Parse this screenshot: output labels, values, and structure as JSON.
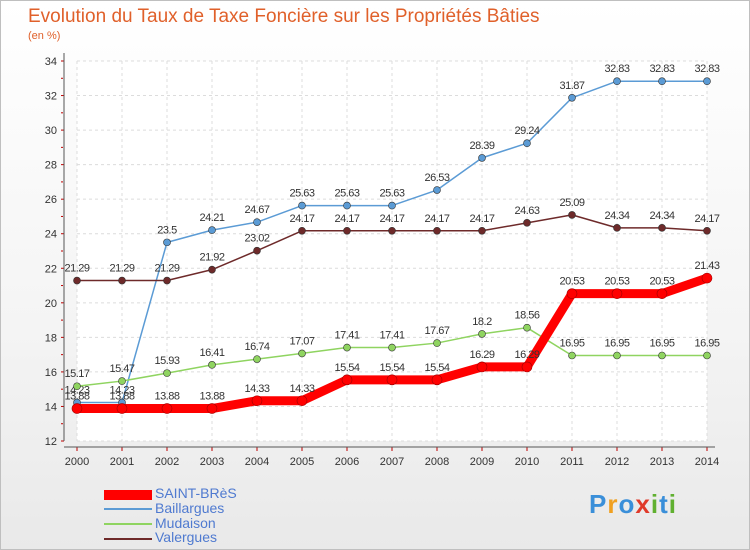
{
  "chart_data": {
    "type": "line",
    "title": "Evolution du Taux de Taxe Foncière sur les Propriétés Bâties",
    "unit_label": "(en %)",
    "x": [
      "2000",
      "2001",
      "2002",
      "2003",
      "2004",
      "2005",
      "2006",
      "2007",
      "2008",
      "2009",
      "2010",
      "2011",
      "2012",
      "2013",
      "2014"
    ],
    "ylim": [
      12,
      34
    ],
    "yticks": [
      12,
      14,
      16,
      18,
      20,
      22,
      24,
      26,
      28,
      30,
      32,
      34
    ],
    "grid": true,
    "series": [
      {
        "name": "Baillargues",
        "color": "#5b9bd5",
        "values": [
          14.23,
          14.23,
          23.5,
          24.21,
          24.67,
          25.63,
          25.63,
          25.63,
          26.53,
          28.39,
          29.24,
          31.87,
          32.83,
          32.83,
          32.83
        ],
        "labels": [
          "14.23",
          "14.23",
          "23.5",
          "24.21",
          "24.67",
          "25.63",
          "25.63",
          "25.63",
          "26.53",
          "28.39",
          "29.24",
          "31.87",
          "32.83",
          "32.83",
          "32.83"
        ]
      },
      {
        "name": "Valergues",
        "color": "#6e2a2a",
        "values": [
          21.29,
          21.29,
          21.29,
          21.92,
          23.02,
          24.17,
          24.17,
          24.17,
          24.17,
          24.17,
          24.63,
          25.09,
          24.34,
          24.34,
          24.17
        ],
        "labels": [
          "21.29",
          "21.29",
          "21.29",
          "21.92",
          "23.02",
          "24.17",
          "24.17",
          "24.17",
          "24.17",
          "24.17",
          "24.63",
          "25.09",
          "24.34",
          "24.34",
          "24.17"
        ]
      },
      {
        "name": "Mudaison",
        "color": "#8fd460",
        "values": [
          15.17,
          15.47,
          15.93,
          16.41,
          16.74,
          17.07,
          17.41,
          17.41,
          17.67,
          18.2,
          18.56,
          16.95,
          16.95,
          16.95,
          16.95
        ],
        "labels": [
          "15.17",
          "15.47",
          "15.93",
          "16.41",
          "16.74",
          "17.07",
          "17.41",
          "17.41",
          "17.67",
          "18.2",
          "18.56",
          "16.95",
          "16.95",
          "16.95",
          "16.95"
        ]
      },
      {
        "name": "SAINT-BRèS",
        "color": "#ff0000",
        "values": [
          13.88,
          13.88,
          13.88,
          13.88,
          14.33,
          14.33,
          15.54,
          15.54,
          15.54,
          16.29,
          16.29,
          20.53,
          20.53,
          20.53,
          21.43
        ],
        "labels": [
          "13.88",
          "13.88",
          "13.88",
          "13.88",
          "14.33",
          "14.33",
          "15.54",
          "15.54",
          "15.54",
          "16.29",
          "16.29",
          "20.53",
          "20.53",
          "20.53",
          "21.43"
        ]
      }
    ],
    "legend": [
      {
        "name": "SAINT-BRèS",
        "color": "#ff0000"
      },
      {
        "name": "Baillargues",
        "color": "#5b9bd5"
      },
      {
        "name": "Mudaison",
        "color": "#8fd460"
      },
      {
        "name": "Valergues",
        "color": "#6e2a2a"
      }
    ],
    "legend_position": "bottom-left"
  },
  "logo": {
    "text": "Proxiti",
    "letters": [
      "P",
      "r",
      "o",
      "x",
      "i",
      "t",
      "i"
    ],
    "colors": [
      "#3a8fd9",
      "#f0a020",
      "#3a8fd9",
      "#e03a2a",
      "#60b030",
      "#3a8fd9",
      "#60b030"
    ]
  }
}
